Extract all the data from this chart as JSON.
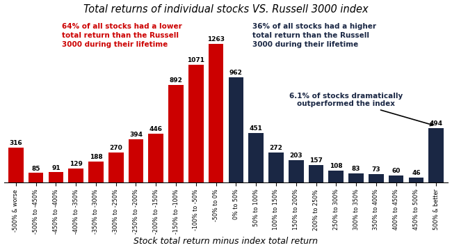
{
  "categories": [
    "-500% & worse",
    "-500% to -450%",
    "-450% to -400%",
    "-400% to -350%",
    "-350% to -300%",
    "-300% to -250%",
    "-250% to -200%",
    "-200% to -150%",
    "-150% to -100%",
    "-100% to -50%",
    "-50% to 0%",
    "0% to 50%",
    "50% to 100%",
    "100% to 150%",
    "150% to 200%",
    "200% to 250%",
    "250% to 300%",
    "300% to 350%",
    "350% to 400%",
    "400% to 450%",
    "450% to 500%",
    "500% & better"
  ],
  "values": [
    316,
    85,
    91,
    129,
    188,
    270,
    394,
    446,
    892,
    1071,
    1263,
    962,
    451,
    272,
    203,
    157,
    108,
    83,
    73,
    60,
    46,
    494
  ],
  "colors": [
    "#cc0000",
    "#cc0000",
    "#cc0000",
    "#cc0000",
    "#cc0000",
    "#cc0000",
    "#cc0000",
    "#cc0000",
    "#cc0000",
    "#cc0000",
    "#cc0000",
    "#1a2744",
    "#1a2744",
    "#1a2744",
    "#1a2744",
    "#1a2744",
    "#1a2744",
    "#1a2744",
    "#1a2744",
    "#1a2744",
    "#1a2744",
    "#1a2744"
  ],
  "title": "Total returns of individual stocks VS. Russell 3000 index",
  "xlabel": "Stock total return minus index total return",
  "annotation_left_text": "64% of all stocks had a lower\ntotal return than the Russell\n3000 during their lifetime",
  "annotation_right_text": "36% of all stocks had a higher\ntotal return than the Russell\n3000 during their lifetime",
  "annotation_outperform_text": "6.1% of stocks dramatically\noutperformed the index",
  "annotation_left_color": "#cc0000",
  "annotation_right_color": "#1a2744",
  "bar_label_fontsize": 6.5,
  "title_fontsize": 10.5,
  "xlabel_fontsize": 9,
  "ylim": [
    0,
    1500
  ],
  "annot_fontsize": 7.5
}
